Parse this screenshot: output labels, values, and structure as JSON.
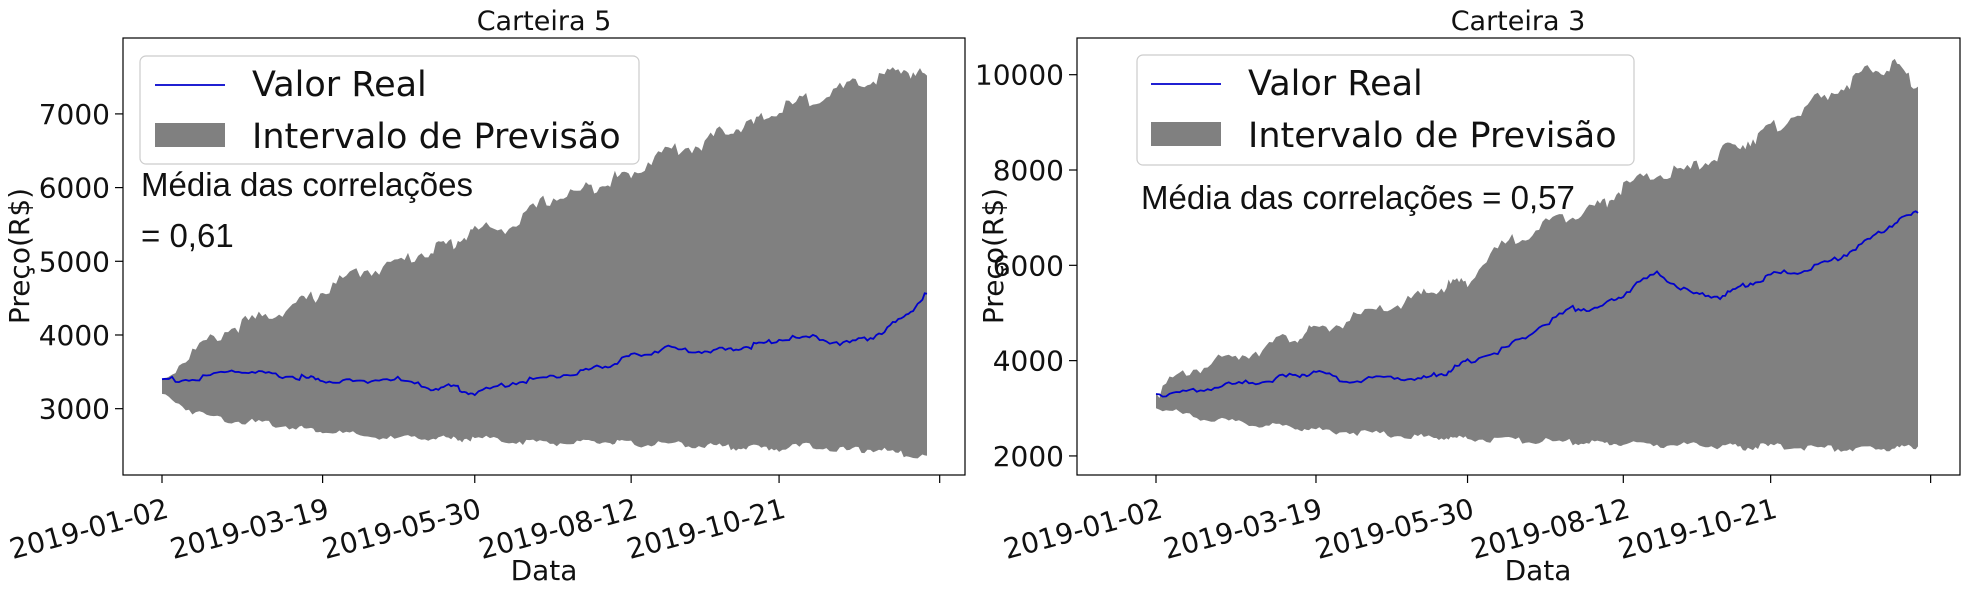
{
  "chart_data": [
    {
      "type": "area",
      "title": "Carteira 5",
      "xlabel": "Data",
      "ylabel": "Preço(R$)",
      "ylim": [
        2100,
        8030
      ],
      "x_tick_labels": [
        "2019-01-02",
        "2019-03-19",
        "2019-05-30",
        "2019-08-12",
        "2019-10-21"
      ],
      "y_tick_labels": [
        "3000",
        "4000",
        "5000",
        "6000",
        "7000"
      ],
      "y_ticks": [
        3000,
        4000,
        5000,
        6000,
        7000
      ],
      "legend": {
        "position": "top-left",
        "items": [
          "Valor Real",
          "Intervalo de Previsão"
        ]
      },
      "annotation": [
        "Média das correlações",
        "= 0,61"
      ],
      "x": [
        "2019-01-02",
        "2019-01-18",
        "2019-02-04",
        "2019-02-20",
        "2019-03-08",
        "2019-03-19",
        "2019-04-04",
        "2019-04-22",
        "2019-05-08",
        "2019-05-20",
        "2019-05-30",
        "2019-06-17",
        "2019-07-03",
        "2019-07-19",
        "2019-08-01",
        "2019-08-12",
        "2019-08-28",
        "2019-09-13",
        "2019-09-27",
        "2019-10-09",
        "2019-10-21",
        "2019-11-06",
        "2019-11-22",
        "2019-12-06",
        "2019-12-19",
        "2019-12-30"
      ],
      "series": [
        {
          "name": "Valor Real",
          "values": [
            3400,
            3390,
            3520,
            3460,
            3430,
            3380,
            3370,
            3410,
            3280,
            3300,
            3200,
            3360,
            3420,
            3500,
            3590,
            3700,
            3820,
            3780,
            3800,
            3860,
            3940,
            3960,
            3880,
            4000,
            4230,
            4560
          ]
        },
        {
          "name": "Intervalo de Previsão (superior)",
          "values": [
            3400,
            3800,
            4100,
            4250,
            4430,
            4580,
            4850,
            4960,
            5150,
            5250,
            5420,
            5480,
            5830,
            5950,
            6100,
            6190,
            6500,
            6570,
            6800,
            6860,
            7050,
            7220,
            7350,
            7480,
            7600,
            7520
          ]
        },
        {
          "name": "Intervalo de Previsão (inferior)",
          "values": [
            3200,
            2940,
            2840,
            2800,
            2740,
            2700,
            2640,
            2590,
            2610,
            2580,
            2600,
            2560,
            2540,
            2530,
            2550,
            2520,
            2520,
            2500,
            2480,
            2470,
            2460,
            2500,
            2430,
            2450,
            2380,
            2360
          ]
        }
      ]
    },
    {
      "type": "area",
      "title": "Carteira 3",
      "xlabel": "Data",
      "ylabel": "Preço(R$)",
      "ylim": [
        1600,
        10770
      ],
      "x_tick_labels": [
        "2019-01-02",
        "2019-03-19",
        "2019-05-30",
        "2019-08-12",
        "2019-10-21"
      ],
      "y_tick_labels": [
        "2000",
        "4000",
        "6000",
        "8000",
        "10000"
      ],
      "y_ticks": [
        2000,
        4000,
        6000,
        8000,
        10000
      ],
      "legend": {
        "position": "top-left",
        "items": [
          "Valor Real",
          "Intervalo de Previsão"
        ]
      },
      "annotation": [
        "Média das correlações = 0,57"
      ],
      "x": [
        "2019-01-02",
        "2019-01-18",
        "2019-02-04",
        "2019-02-20",
        "2019-03-08",
        "2019-03-19",
        "2019-04-04",
        "2019-04-22",
        "2019-05-08",
        "2019-05-20",
        "2019-05-30",
        "2019-06-17",
        "2019-07-03",
        "2019-07-19",
        "2019-08-01",
        "2019-08-12",
        "2019-08-28",
        "2019-09-13",
        "2019-09-27",
        "2019-10-09",
        "2019-10-21",
        "2019-11-06",
        "2019-11-22",
        "2019-12-06",
        "2019-12-19",
        "2019-12-30"
      ],
      "series": [
        {
          "name": "Valor Real",
          "values": [
            3300,
            3340,
            3480,
            3560,
            3680,
            3750,
            3560,
            3650,
            3620,
            3750,
            3980,
            4250,
            4700,
            5100,
            5100,
            5400,
            5850,
            5400,
            5350,
            5580,
            5800,
            5900,
            6150,
            6500,
            6900,
            7100
          ]
        },
        {
          "name": "Intervalo de Previsão (superior)",
          "values": [
            3320,
            3800,
            4020,
            4250,
            4500,
            4620,
            4850,
            5100,
            5350,
            5560,
            5700,
            6450,
            6800,
            7100,
            7250,
            7650,
            7900,
            8000,
            8350,
            8600,
            8850,
            9300,
            9700,
            10050,
            10200,
            9750
          ]
        },
        {
          "name": "Intervalo de Previsão (inferior)",
          "values": [
            3000,
            2850,
            2720,
            2650,
            2600,
            2550,
            2500,
            2450,
            2400,
            2380,
            2370,
            2330,
            2310,
            2290,
            2270,
            2260,
            2240,
            2220,
            2200,
            2180,
            2200,
            2180,
            2150,
            2140,
            2170,
            2200
          ]
        }
      ]
    }
  ]
}
